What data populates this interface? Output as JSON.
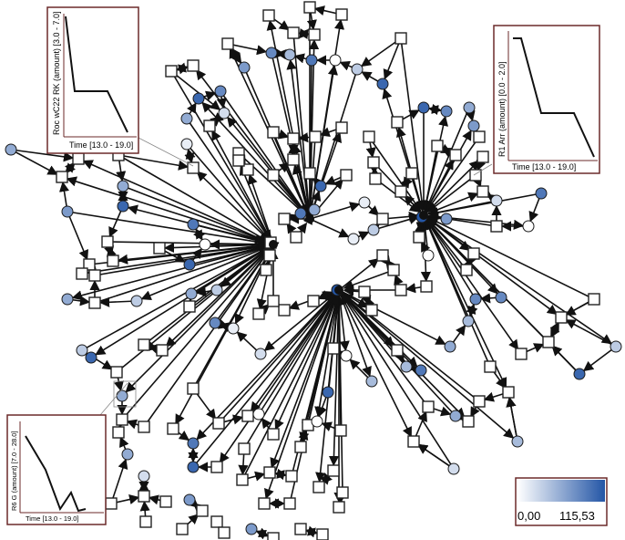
{
  "diagram": {
    "colors": {
      "edge": "#111111",
      "square_fill": "#ffffff",
      "square_stroke": "#222222",
      "node_stroke": "#1a1a1a",
      "inset_border": "#6b2a2a",
      "low": "#ffffff",
      "high": "#2456a6"
    },
    "colorbar": {
      "min_label": "0,00",
      "max_label": "115,53"
    },
    "insets": [
      {
        "ylabel": "Roc   wC22  RK (amount) [3.0 - 7.0]",
        "xlabel": "Time [13.0 - 19.0]"
      },
      {
        "ylabel": "R1  Arr (amount) [0.0 - 2.0]",
        "xlabel": "Time [13.0 - 19.0]"
      },
      {
        "ylabel": "R6  G (amount) [7.0 - 28.0]",
        "xlabel": "Time [13.0 - 19.0]"
      }
    ]
  }
}
